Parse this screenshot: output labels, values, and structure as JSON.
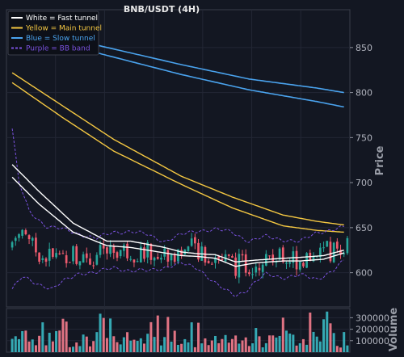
{
  "chart_data": {
    "type": "line",
    "title": "BNB/USDT (4H)",
    "price_panel": {
      "ylabel": "Price",
      "ylim": [
        562,
        892
      ],
      "yticks": [
        600,
        650,
        700,
        750,
        800,
        850
      ],
      "grid": true,
      "legend_placement": "top-left",
      "legend": [
        {
          "label": "White = Fast tunnel",
          "color": "#ffffff",
          "style": "solid"
        },
        {
          "label": "Yellow = Main tunnel",
          "color": "#f5c842",
          "style": "solid"
        },
        {
          "label": "Blue = Slow tunnel",
          "color": "#4aa3ee",
          "style": "solid"
        },
        {
          "label": "Purple = BB band",
          "color": "#7b52e0",
          "style": "dashed"
        }
      ]
    },
    "volume_panel": {
      "ylabel": "Volume",
      "ylim": [
        0,
        380000
      ],
      "yticks": [
        100000,
        200000,
        300000
      ]
    },
    "colors": {
      "up": "#26a69a",
      "down": "#ef5b6e",
      "volume_up": "#35a9b4",
      "volume_down": "#e07383"
    },
    "candle_count": 100,
    "series": {
      "blue_upper": [
        [
          0,
          872
        ],
        [
          20,
          857
        ],
        [
          50,
          831
        ],
        [
          70,
          815
        ],
        [
          90,
          805
        ],
        [
          98,
          800
        ]
      ],
      "blue_lower": [
        [
          0,
          865
        ],
        [
          20,
          849
        ],
        [
          50,
          820
        ],
        [
          70,
          803
        ],
        [
          90,
          790
        ],
        [
          98,
          784
        ]
      ],
      "yellow_upper": [
        [
          0,
          822
        ],
        [
          15,
          785
        ],
        [
          30,
          748
        ],
        [
          50,
          707
        ],
        [
          65,
          684
        ],
        [
          80,
          664
        ],
        [
          90,
          657
        ],
        [
          98,
          653
        ]
      ],
      "yellow_lower": [
        [
          0,
          811
        ],
        [
          15,
          772
        ],
        [
          30,
          735
        ],
        [
          50,
          698
        ],
        [
          65,
          672
        ],
        [
          80,
          652
        ],
        [
          90,
          647
        ],
        [
          98,
          645
        ]
      ],
      "white_upper": [
        [
          0,
          720
        ],
        [
          8,
          690
        ],
        [
          18,
          655
        ],
        [
          28,
          635
        ],
        [
          35,
          635
        ],
        [
          45,
          628
        ],
        [
          50,
          623
        ],
        [
          55,
          621
        ],
        [
          60,
          620
        ],
        [
          66,
          612
        ],
        [
          72,
          614
        ],
        [
          80,
          616
        ],
        [
          85,
          617
        ],
        [
          92,
          619
        ],
        [
          98,
          625
        ]
      ],
      "white_lower": [
        [
          0,
          706
        ],
        [
          8,
          676
        ],
        [
          18,
          645
        ],
        [
          28,
          630
        ],
        [
          35,
          628
        ],
        [
          45,
          622
        ],
        [
          50,
          619
        ],
        [
          55,
          618
        ],
        [
          60,
          616
        ],
        [
          66,
          607
        ],
        [
          72,
          611
        ],
        [
          80,
          613
        ],
        [
          85,
          613
        ],
        [
          92,
          615
        ],
        [
          98,
          622
        ]
      ],
      "bb_upper": [
        [
          0,
          760
        ],
        [
          2,
          700
        ],
        [
          5,
          668
        ],
        [
          10,
          652
        ],
        [
          15,
          648
        ],
        [
          20,
          643
        ],
        [
          25,
          638
        ],
        [
          30,
          645
        ],
        [
          35,
          646
        ],
        [
          40,
          642
        ],
        [
          45,
          635
        ],
        [
          50,
          642
        ],
        [
          55,
          647
        ],
        [
          60,
          648
        ],
        [
          65,
          645
        ],
        [
          70,
          635
        ],
        [
          75,
          640
        ],
        [
          80,
          637
        ],
        [
          85,
          634
        ],
        [
          90,
          645
        ],
        [
          95,
          648
        ],
        [
          98,
          650
        ]
      ],
      "bb_lower": [
        [
          0,
          582
        ],
        [
          3,
          595
        ],
        [
          6,
          590
        ],
        [
          12,
          582
        ],
        [
          15,
          590
        ],
        [
          20,
          600
        ],
        [
          25,
          600
        ],
        [
          30,
          606
        ],
        [
          35,
          602
        ],
        [
          40,
          602
        ],
        [
          45,
          606
        ],
        [
          50,
          610
        ],
        [
          55,
          605
        ],
        [
          60,
          588
        ],
        [
          63,
          580
        ],
        [
          66,
          575
        ],
        [
          69,
          580
        ],
        [
          72,
          590
        ],
        [
          75,
          598
        ],
        [
          80,
          595
        ],
        [
          85,
          597
        ],
        [
          90,
          593
        ],
        [
          95,
          603
        ],
        [
          98,
          613
        ]
      ]
    }
  }
}
